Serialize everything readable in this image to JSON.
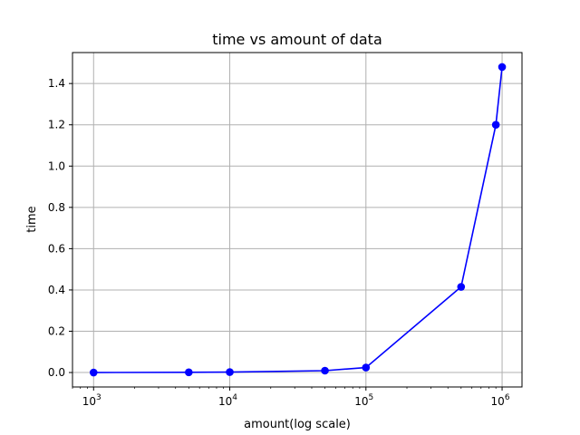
{
  "chart_data": {
    "type": "line",
    "title": "time vs amount of data",
    "xlabel": "amount(log scale)",
    "ylabel": "time",
    "xscale": "log",
    "xlim": [
      700,
      1400000
    ],
    "ylim": [
      -0.07,
      1.55
    ],
    "grid": true,
    "color": "#0000ff",
    "marker": "circle",
    "x_ticks": [
      {
        "value": 1000,
        "base": "10",
        "exp": "3"
      },
      {
        "value": 10000,
        "base": "10",
        "exp": "4"
      },
      {
        "value": 100000,
        "base": "10",
        "exp": "5"
      },
      {
        "value": 1000000,
        "base": "10",
        "exp": "6"
      }
    ],
    "y_ticks": [
      {
        "value": 0.0,
        "label": "0.0"
      },
      {
        "value": 0.2,
        "label": "0.2"
      },
      {
        "value": 0.4,
        "label": "0.4"
      },
      {
        "value": 0.6,
        "label": "0.6"
      },
      {
        "value": 0.8,
        "label": "0.8"
      },
      {
        "value": 1.0,
        "label": "1.0"
      },
      {
        "value": 1.2,
        "label": "1.2"
      },
      {
        "value": 1.4,
        "label": "1.4"
      }
    ],
    "series": [
      {
        "x": [
          1000,
          5000,
          10000,
          50000,
          100000,
          500000,
          900000,
          1000000
        ],
        "y": [
          0.0,
          0.001,
          0.002,
          0.009,
          0.024,
          0.415,
          1.2,
          1.48
        ]
      }
    ]
  }
}
